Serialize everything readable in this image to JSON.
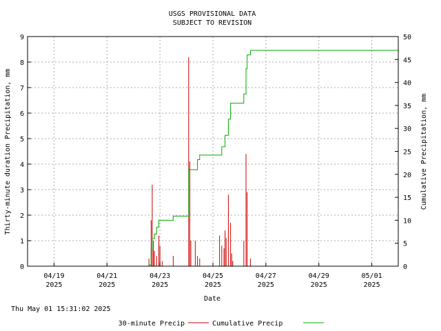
{
  "title_line1": "USGS PROVISIONAL DATA",
  "title_line2": "SUBJECT TO REVISION",
  "timestamp": "Thu May 01 15:31:02 2025",
  "colors": {
    "precip": "#cc0000",
    "cumulative": "#00aa00",
    "grid": "#aaaaaa",
    "frame": "#000000"
  },
  "chart_data": {
    "type": "line",
    "xlabel": "Date",
    "ylabel_left": "Thirty-minute duration Precipitation, mm",
    "ylabel_right": "Cumulative Precipitation, mm",
    "xlim": [
      "2025-04-18",
      "2025-05-02"
    ],
    "ylim_left": [
      0,
      9
    ],
    "ylim_right": [
      0,
      50
    ],
    "x_ticks": [
      {
        "date": "2025-04-19",
        "l1": "04/19",
        "l2": "2025"
      },
      {
        "date": "2025-04-21",
        "l1": "04/21",
        "l2": "2025"
      },
      {
        "date": "2025-04-23",
        "l1": "04/23",
        "l2": "2025"
      },
      {
        "date": "2025-04-25",
        "l1": "04/25",
        "l2": "2025"
      },
      {
        "date": "2025-04-27",
        "l1": "04/27",
        "l2": "2025"
      },
      {
        "date": "2025-04-29",
        "l1": "04/29",
        "l2": "2025"
      },
      {
        "date": "2025-05-01",
        "l1": "05/01",
        "l2": "2025"
      }
    ],
    "y_ticks_left": [
      "0",
      "1",
      "2",
      "3",
      "4",
      "5",
      "6",
      "7",
      "8",
      "9"
    ],
    "y_ticks_right": [
      "0",
      "5",
      "10",
      "15",
      "20",
      "25",
      "30",
      "35",
      "40",
      "45",
      "50"
    ],
    "grid": true,
    "legend_position": "bottom",
    "series": [
      {
        "name": "30-minute Precip",
        "axis": "left",
        "style": "impulse",
        "x": [
          "2025-04-22 14:00",
          "2025-04-22 16:00",
          "2025-04-22 17:00",
          "2025-04-22 18:00",
          "2025-04-22 19:00",
          "2025-04-22 21:00",
          "2025-04-22 23:00",
          "2025-04-23 00:00",
          "2025-04-23 02:00",
          "2025-04-23 12:00",
          "2025-04-24 02:00",
          "2025-04-24 03:00",
          "2025-04-24 04:00",
          "2025-04-24 08:00",
          "2025-04-24 10:00",
          "2025-04-24 12:00",
          "2025-04-25 06:00",
          "2025-04-25 08:00",
          "2025-04-25 10:00",
          "2025-04-25 11:00",
          "2025-04-25 12:00",
          "2025-04-25 14:00",
          "2025-04-25 16:00",
          "2025-04-25 17:00",
          "2025-04-25 18:00",
          "2025-04-26 04:00",
          "2025-04-26 06:00",
          "2025-04-26 07:00",
          "2025-04-26 10:00"
        ],
        "values": [
          0.3,
          1.8,
          3.2,
          1.0,
          0.6,
          0.4,
          1.2,
          0.8,
          0.2,
          0.4,
          8.2,
          4.1,
          1.0,
          1.0,
          0.4,
          0.3,
          1.2,
          0.8,
          0.7,
          1.4,
          1.1,
          2.8,
          1.7,
          0.5,
          0.2,
          1.0,
          4.4,
          2.9,
          0.3
        ]
      },
      {
        "name": "Cumulative Precip",
        "axis": "right",
        "style": "step",
        "x": [
          "2025-04-18 00:00",
          "2025-04-22 14:00",
          "2025-04-22 16:00",
          "2025-04-22 17:00",
          "2025-04-22 19:00",
          "2025-04-22 21:00",
          "2025-04-22 23:00",
          "2025-04-23 02:00",
          "2025-04-23 12:00",
          "2025-04-24 02:00",
          "2025-04-24 03:00",
          "2025-04-24 10:00",
          "2025-04-24 12:00",
          "2025-04-25 06:00",
          "2025-04-25 08:00",
          "2025-04-25 11:00",
          "2025-04-25 14:00",
          "2025-04-25 16:00",
          "2025-04-25 18:00",
          "2025-04-26 04:00",
          "2025-04-26 06:00",
          "2025-04-26 07:00",
          "2025-04-26 10:00",
          "2025-05-02 00:00"
        ],
        "values": [
          0,
          0.3,
          3.5,
          6.0,
          7.0,
          8.5,
          10.0,
          10.0,
          10.9,
          21.0,
          21.0,
          23.2,
          24.2,
          24.2,
          26.0,
          28.5,
          32.0,
          35.5,
          35.5,
          37.5,
          43.0,
          46.0,
          47.0,
          47.0
        ]
      }
    ]
  }
}
